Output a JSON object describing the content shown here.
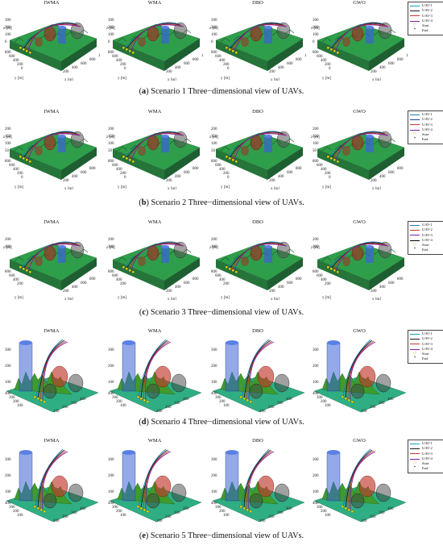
{
  "panel_titles": [
    "IWMA",
    "WMA",
    "DBO",
    "GWO"
  ],
  "legend": {
    "uavs": [
      "UAV-1",
      "UAV-2",
      "UAV-3",
      "UAV-4"
    ],
    "start": "Start",
    "end": "End"
  },
  "colors": {
    "uav1_light": "#1f77b4",
    "uav1_dark": "#11a0b8",
    "uav2": "#1a1a1a",
    "uav3": "#c0392b",
    "uav4": "#7a1fa2",
    "uav2_blue": "#1b3fa6",
    "uav4_black": "#000000",
    "terrain": "#2f9e4a",
    "start_marker": "#f2e600"
  },
  "scenarios": [
    {
      "label": "a",
      "caption": "Scenario 1 Three−dimensional view of UAVs.",
      "zlabel": "z [m]",
      "ylabel": "y [m]",
      "xlabel": "x [m]",
      "ticks_z": [
        "300",
        "200",
        "100",
        "0"
      ],
      "ticks_y": [
        "800",
        "600",
        "400",
        "200",
        "0"
      ],
      "ticks_x": [
        "200",
        "400",
        "600",
        "800",
        "1000"
      ]
    },
    {
      "label": "b",
      "caption": "Scenario 2 Three−dimensional view of UAVs.",
      "zlabel": "z [m]",
      "ylabel": "y [m]",
      "xlabel": "x [m]",
      "ticks_z": [
        "200",
        "150",
        "100",
        "50"
      ],
      "ticks_y": [
        "800",
        "600",
        "400",
        "200",
        "0"
      ],
      "ticks_x": [
        "200",
        "400",
        "600",
        "800"
      ]
    },
    {
      "label": "c",
      "caption": "Scenario 3 Three−dimensional view of UAVs.",
      "zlabel": "z [m]",
      "ylabel": "y [m]",
      "xlabel": "x [m]",
      "ticks_z": [
        "200",
        "100"
      ],
      "ticks_y": [
        "800",
        "600",
        "400",
        "200"
      ],
      "ticks_x": [
        "200",
        "400",
        "600",
        "800"
      ]
    },
    {
      "label": "d",
      "caption": "Scenario 4 Three−dimensional view of UAVs.",
      "zlabel": "",
      "ylabel": "",
      "xlabel": "",
      "ticks_z": [
        "300",
        "200",
        "100"
      ],
      "ticks_y": [
        "400",
        "300",
        "200",
        "100"
      ],
      "ticks_x": [
        "100",
        "200",
        "300",
        "400"
      ]
    },
    {
      "label": "e",
      "caption": "Scenario 5 Three−dimensional view of UAVs.",
      "zlabel": "",
      "ylabel": "",
      "xlabel": "",
      "ticks_z": [
        "300",
        "200",
        "100"
      ],
      "ticks_y": [
        "400",
        "300",
        "200",
        "100"
      ],
      "ticks_x": [
        "100",
        "200",
        "300",
        "400"
      ]
    }
  ]
}
